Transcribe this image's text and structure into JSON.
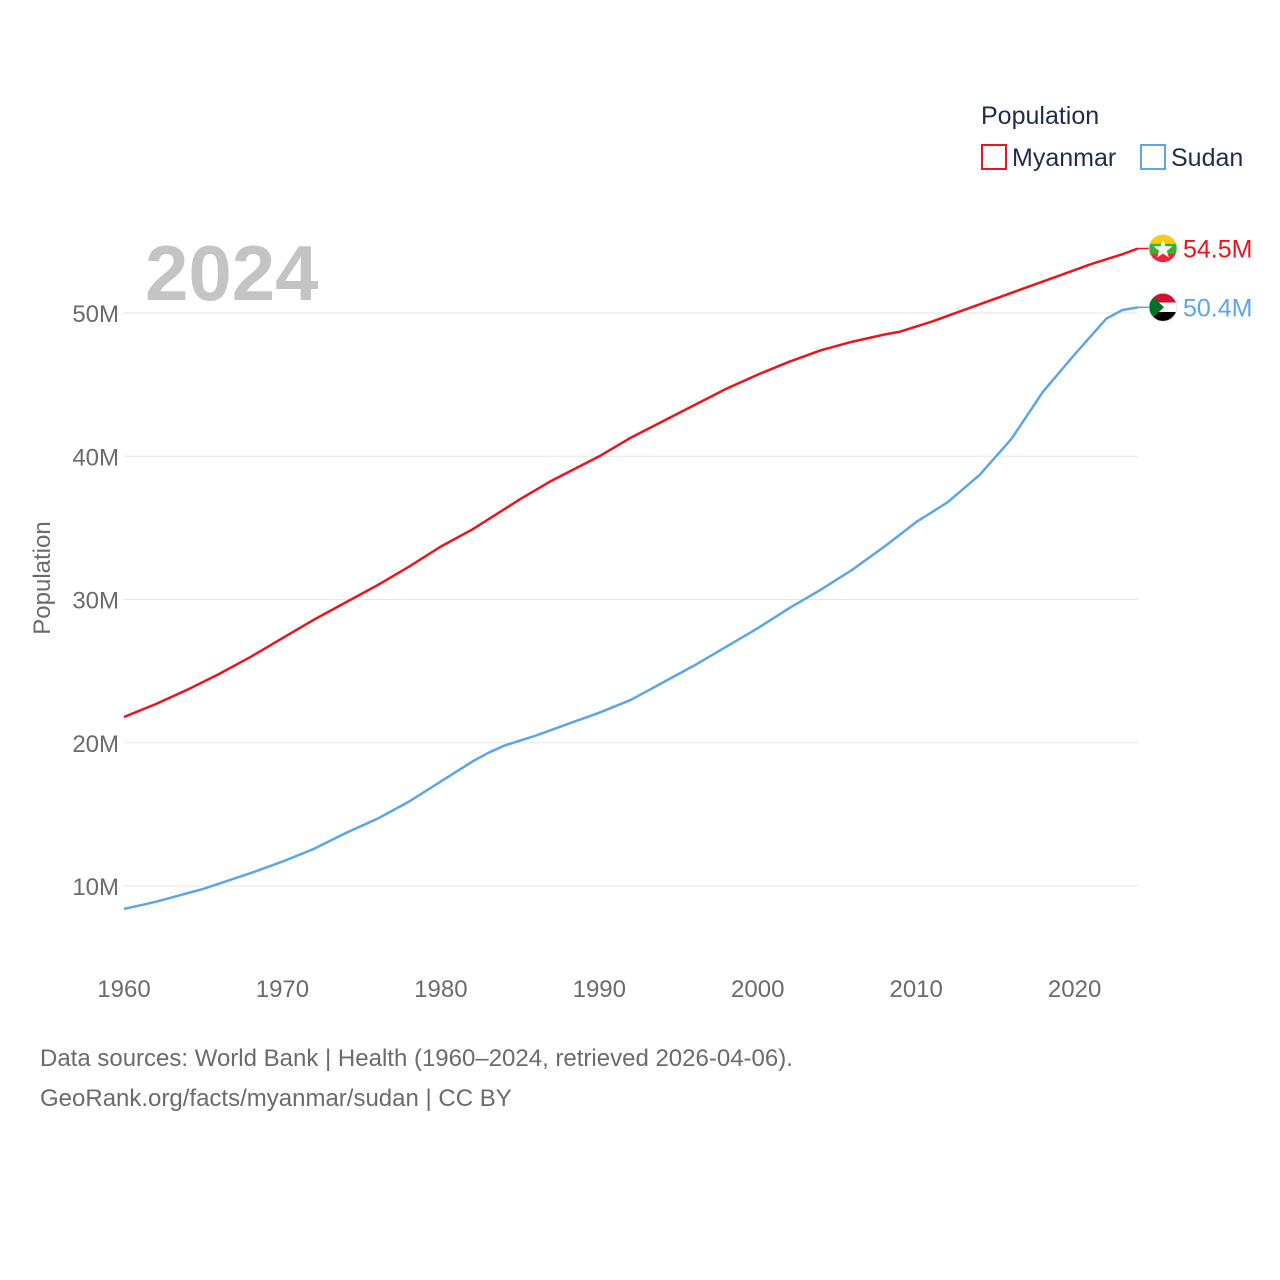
{
  "chart_data": {
    "type": "line",
    "year_label": "2024",
    "ylabel": "Population",
    "xlabel": "",
    "xlim": [
      1960,
      2024
    ],
    "ylim": [
      5000000,
      59000000
    ],
    "x_ticks": [
      {
        "value": 1960,
        "label": "1960"
      },
      {
        "value": 1970,
        "label": "1970"
      },
      {
        "value": 1980,
        "label": "1980"
      },
      {
        "value": 1990,
        "label": "1990"
      },
      {
        "value": 2000,
        "label": "2000"
      },
      {
        "value": 2010,
        "label": "2010"
      },
      {
        "value": 2020,
        "label": "2020"
      }
    ],
    "y_ticks": [
      {
        "value": 10000000,
        "label": "10M"
      },
      {
        "value": 20000000,
        "label": "20M"
      },
      {
        "value": 30000000,
        "label": "30M"
      },
      {
        "value": 40000000,
        "label": "40M"
      },
      {
        "value": 50000000,
        "label": "50M"
      }
    ],
    "legend": {
      "title": "Population",
      "position": "top-right"
    },
    "series": [
      {
        "name": "Myanmar",
        "color": "#e8161c",
        "end_label": "54.5M",
        "flag": "myanmar-flag",
        "points": [
          [
            1960,
            21.8
          ],
          [
            1962,
            22.7
          ],
          [
            1964,
            23.7
          ],
          [
            1966,
            24.8
          ],
          [
            1968,
            26.0
          ],
          [
            1970,
            27.3
          ],
          [
            1972,
            28.6
          ],
          [
            1974,
            29.8
          ],
          [
            1976,
            31.0
          ],
          [
            1978,
            32.3
          ],
          [
            1980,
            33.7
          ],
          [
            1982,
            34.9
          ],
          [
            1983,
            35.6
          ],
          [
            1985,
            37.0
          ],
          [
            1987,
            38.3
          ],
          [
            1990,
            40.0
          ],
          [
            1992,
            41.3
          ],
          [
            1995,
            43.0
          ],
          [
            1998,
            44.7
          ],
          [
            2000,
            45.7
          ],
          [
            2002,
            46.6
          ],
          [
            2004,
            47.4
          ],
          [
            2006,
            48.0
          ],
          [
            2008,
            48.5
          ],
          [
            2009,
            48.7
          ],
          [
            2011,
            49.4
          ],
          [
            2013,
            50.2
          ],
          [
            2015,
            51.0
          ],
          [
            2017,
            51.8
          ],
          [
            2019,
            52.6
          ],
          [
            2021,
            53.4
          ],
          [
            2023,
            54.1
          ],
          [
            2024,
            54.5
          ]
        ]
      },
      {
        "name": "Sudan",
        "color": "#5ba6e8",
        "end_label": "50.4M",
        "flag": "sudan-flag",
        "points": [
          [
            1960,
            8.4
          ],
          [
            1962,
            8.9
          ],
          [
            1965,
            9.8
          ],
          [
            1968,
            10.9
          ],
          [
            1970,
            11.7
          ],
          [
            1972,
            12.6
          ],
          [
            1974,
            13.7
          ],
          [
            1976,
            14.7
          ],
          [
            1978,
            15.9
          ],
          [
            1980,
            17.3
          ],
          [
            1982,
            18.7
          ],
          [
            1983,
            19.3
          ],
          [
            1984,
            19.8
          ],
          [
            1986,
            20.5
          ],
          [
            1988,
            21.3
          ],
          [
            1990,
            22.1
          ],
          [
            1992,
            23.0
          ],
          [
            1994,
            24.2
          ],
          [
            1996,
            25.4
          ],
          [
            1998,
            26.7
          ],
          [
            2000,
            28.0
          ],
          [
            2002,
            29.4
          ],
          [
            2004,
            30.7
          ],
          [
            2006,
            32.1
          ],
          [
            2008,
            33.7
          ],
          [
            2010,
            35.4
          ],
          [
            2012,
            36.8
          ],
          [
            2014,
            38.7
          ],
          [
            2016,
            41.2
          ],
          [
            2018,
            44.5
          ],
          [
            2020,
            47.1
          ],
          [
            2022,
            49.6
          ],
          [
            2023,
            50.2
          ],
          [
            2024,
            50.4
          ]
        ]
      }
    ]
  },
  "footer": {
    "line1": "Data sources: World Bank | Health (1960–2024, retrieved 2026-04-06).",
    "line2": "GeoRank.org/facts/myanmar/sudan | CC BY"
  }
}
